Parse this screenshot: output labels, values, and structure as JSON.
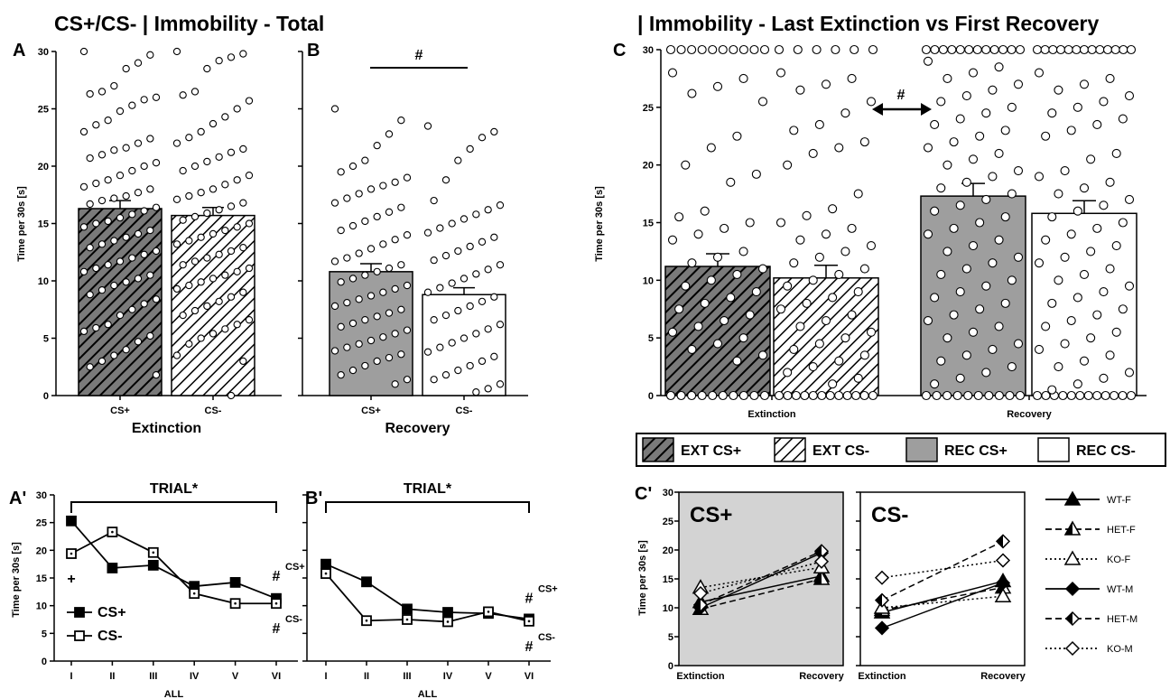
{
  "titles": {
    "left": "CS+/CS- | Immobility - Total",
    "right": "| Immobility - Last Extinction vs First Recovery"
  },
  "colors": {
    "gray_fill": "#9e9e9e",
    "panel_gray": "#d3d3d3",
    "line": "#000000"
  },
  "chart_data": [
    {
      "id": "A",
      "panel_label": "A",
      "type": "bar",
      "categories": [
        "CS+",
        "CS-"
      ],
      "group_label": "Extinction",
      "ylabel": "Time per 30s [s]",
      "ylim": [
        0,
        30
      ],
      "yticks": [
        0,
        5,
        10,
        15,
        20,
        25,
        30
      ],
      "fills": [
        "hatch-dark",
        "hatch-light"
      ],
      "values": [
        16.3,
        15.7
      ],
      "errors": [
        0.7,
        0.7
      ],
      "points": [
        [
          30,
          29.7,
          29,
          28.5,
          27,
          26.5,
          26.3,
          26,
          25.8,
          25.3,
          24.8,
          24,
          23.6,
          23,
          22.4,
          22,
          21.6,
          21.4,
          21,
          20.7,
          20.3,
          20,
          19.6,
          19.2,
          18.8,
          18.5,
          18.2,
          18,
          17.7,
          17.4,
          17.2,
          17,
          16.7,
          16.4,
          16.1,
          15.8,
          15.5,
          15.2,
          15,
          14.7,
          14.4,
          14.1,
          13.8,
          13.5,
          13.2,
          12.9,
          12.6,
          12.3,
          12,
          11.7,
          11.4,
          11.1,
          10.8,
          10.5,
          10.2,
          9.9,
          9.6,
          9.2,
          8.8,
          8.4,
          8,
          7.5,
          7,
          6.2,
          5.9,
          5.6,
          5.2,
          4.7,
          4,
          3.5,
          3,
          2.5,
          1.8
        ],
        [
          30,
          29.8,
          29.5,
          29.2,
          28.5,
          26.5,
          26.2,
          25.7,
          25,
          24.3,
          23.7,
          23,
          22.5,
          22,
          21.5,
          21.2,
          20.8,
          20.4,
          20,
          19.6,
          19.2,
          18.8,
          18.4,
          18,
          17.7,
          17.4,
          17.1,
          16.8,
          16.5,
          16.2,
          15.9,
          15.6,
          15.3,
          15,
          14.7,
          14.4,
          14.1,
          13.8,
          13.5,
          13.2,
          12.9,
          12.6,
          12.3,
          12,
          11.7,
          11.4,
          11.1,
          10.8,
          10.5,
          10.2,
          9.9,
          9.6,
          9.3,
          9,
          8.6,
          8.2,
          7.8,
          7.4,
          7,
          6.6,
          6.2,
          5.8,
          5.4,
          5,
          4.5,
          3.5,
          3,
          0
        ]
      ],
      "hash_bracket": false
    },
    {
      "id": "B",
      "panel_label": "B",
      "type": "bar",
      "categories": [
        "CS+",
        "CS-"
      ],
      "group_label": "Recovery",
      "ylim": [
        0,
        30
      ],
      "fills": [
        "gray",
        "white"
      ],
      "values": [
        10.8,
        8.8
      ],
      "errors": [
        0.7,
        0.6
      ],
      "annotation": "#",
      "points": [
        [
          25,
          24,
          22.8,
          21.8,
          20.5,
          20,
          19.5,
          19,
          18.6,
          18.3,
          18,
          17.6,
          17.2,
          16.8,
          16.4,
          16,
          15.6,
          15.2,
          14.8,
          14.4,
          14,
          13.6,
          13.2,
          12.8,
          12.4,
          12,
          11.7,
          11.4,
          11.1,
          10.8,
          10.5,
          10.2,
          9.9,
          9.6,
          9.3,
          9,
          8.7,
          8.4,
          8.1,
          7.8,
          7.5,
          7.2,
          6.9,
          6.6,
          6.3,
          6,
          5.7,
          5.4,
          5.1,
          4.8,
          4.5,
          4.2,
          3.9,
          3.6,
          3.3,
          3,
          2.6,
          2.2,
          1.8,
          1.4,
          1
        ],
        [
          23.5,
          23,
          22.5,
          21.5,
          20.5,
          18.8,
          17,
          16.6,
          16.2,
          15.8,
          15.4,
          15,
          14.6,
          14.2,
          13.8,
          13.4,
          13,
          12.6,
          12.2,
          11.8,
          11.4,
          11,
          10.6,
          10.2,
          9.8,
          9.4,
          9,
          8.6,
          8.2,
          7.8,
          7.4,
          7,
          6.6,
          6.2,
          5.8,
          5.4,
          5,
          4.6,
          4.2,
          3.8,
          3.4,
          3,
          2.6,
          2.2,
          1.8,
          1.4,
          1,
          0.6,
          0.3
        ]
      ]
    },
    {
      "id": "C",
      "panel_label": "C",
      "type": "bar",
      "categories": [
        "EXT CS+",
        "EXT CS-",
        "REC CS+",
        "REC CS-"
      ],
      "group_labels": [
        "Extinction",
        "Recovery"
      ],
      "ylabel": "Time per 30s [s]",
      "ylim": [
        0,
        30
      ],
      "yticks": [
        0,
        5,
        10,
        15,
        20,
        25,
        30
      ],
      "fills": [
        "hatch-dark",
        "hatch-light",
        "gray",
        "white"
      ],
      "values": [
        11.2,
        10.2,
        17.3,
        15.8
      ],
      "errors": [
        1.1,
        1.1,
        1.1,
        1.1
      ],
      "annotation": "#",
      "points": [
        {
          "at30": 10,
          "at0": 10,
          "mid": [
            28,
            27.5,
            26.8,
            26.2,
            25.5,
            22.5,
            21.5,
            20,
            19.2,
            18.5,
            16,
            15.5,
            15,
            14.5,
            14,
            13.5,
            12.5,
            12,
            11.5,
            11,
            10.5,
            10,
            9.5,
            9,
            8.5,
            8,
            7.5,
            7,
            6.5,
            6,
            5.5,
            5,
            4.5,
            4,
            3.5,
            3
          ]
        },
        {
          "at30": 6,
          "at0": 12,
          "mid": [
            28,
            27.5,
            27,
            26.5,
            25.5,
            24.5,
            23.5,
            23,
            22,
            21.5,
            21,
            20,
            17.5,
            16.2,
            15.6,
            15,
            14.5,
            14,
            13.5,
            13,
            12.5,
            12,
            11.5,
            11,
            10.5,
            10,
            9.5,
            9,
            8.5,
            8,
            7.5,
            7,
            6.5,
            6,
            5.5,
            5,
            4.5,
            4,
            3.5,
            3,
            2.5,
            2,
            1.5,
            1
          ]
        },
        {
          "at30": 12,
          "at0": 10,
          "mid": [
            29,
            28.5,
            28,
            27.5,
            27,
            26.5,
            26,
            25.5,
            25,
            24.5,
            24,
            23.5,
            23,
            22.5,
            22,
            21.5,
            21,
            20.5,
            20,
            19.5,
            19,
            18.5,
            18,
            17.5,
            17,
            16.5,
            16,
            15.5,
            15,
            14.5,
            14,
            13.5,
            13,
            12.5,
            12,
            11.5,
            11,
            10.5,
            10,
            9.5,
            9,
            8.5,
            8,
            7.5,
            7,
            6.5,
            6,
            5.5,
            5,
            4.5,
            4,
            3.5,
            3,
            2.5,
            2,
            1.5,
            1
          ]
        },
        {
          "at30": 13,
          "at0": 12,
          "mid": [
            28,
            27.5,
            27,
            26.5,
            26,
            25.5,
            25,
            24.5,
            24,
            23.5,
            23,
            22.5,
            21,
            20.5,
            19.5,
            19,
            18.5,
            18,
            17.5,
            17,
            16.5,
            16,
            15.5,
            15,
            14.5,
            14,
            13.5,
            13,
            12.5,
            12,
            11.5,
            11,
            10.5,
            10,
            9.5,
            9,
            8.5,
            8,
            7.5,
            7,
            6.5,
            6,
            5.5,
            5,
            4.5,
            4,
            3.5,
            3,
            2.5,
            2,
            1.5,
            1,
            0.5
          ]
        }
      ]
    },
    {
      "id": "A'",
      "panel_label": "A'",
      "type": "line",
      "top_label": "TRIAL*",
      "ylabel": "Time per 30s [s]",
      "ylim": [
        0,
        30
      ],
      "yticks": [
        0,
        5,
        10,
        15,
        20,
        25,
        30
      ],
      "x": [
        "I",
        "II",
        "III",
        "IV",
        "V",
        "VI"
      ],
      "xlabel": "ALL",
      "series": [
        {
          "name": "CS+",
          "marker": "filled-square",
          "values": [
            25.3,
            16.8,
            17.3,
            13.5,
            14.2,
            11.3
          ],
          "errors": [
            0.7,
            0.7,
            0.7,
            0.7,
            0.7,
            0.7
          ]
        },
        {
          "name": "CS-",
          "marker": "open-square",
          "values": [
            19.4,
            23.3,
            19.6,
            12.2,
            10.4,
            10.4
          ],
          "errors": [
            0.7,
            0.7,
            0.7,
            0.7,
            0.7,
            0.7
          ]
        }
      ],
      "annotations": [
        {
          "text": "+",
          "x": "I",
          "y": 15
        },
        {
          "text": "#",
          "x": "VI",
          "y": 15.5,
          "sup": "CS+"
        },
        {
          "text": "#",
          "x": "VI",
          "y": 6,
          "sup": "CS-"
        }
      ]
    },
    {
      "id": "B'",
      "panel_label": "B'",
      "type": "line",
      "top_label": "TRIAL*",
      "ylim": [
        0,
        30
      ],
      "x": [
        "I",
        "II",
        "III",
        "IV",
        "V",
        "VI"
      ],
      "xlabel": "ALL",
      "series": [
        {
          "name": "CS+",
          "marker": "filled-square",
          "values": [
            17.5,
            14.3,
            9.4,
            8.8,
            8.6,
            7.6
          ],
          "errors": [
            0.6,
            0.6,
            0.6,
            0.6,
            0.6,
            0.6
          ]
        },
        {
          "name": "CS-",
          "marker": "open-square",
          "values": [
            15.8,
            7.3,
            7.5,
            7.1,
            8.9,
            7.2
          ],
          "errors": [
            0.6,
            0.6,
            0.6,
            0.6,
            0.6,
            0.6
          ]
        }
      ],
      "annotations": [
        {
          "text": "#",
          "x": "VI",
          "y": 11.5,
          "sup": "CS+"
        },
        {
          "text": "#",
          "x": "VI",
          "y": 2.8,
          "sup": "CS-"
        }
      ]
    },
    {
      "id": "C'",
      "panel_label": "C'",
      "type": "line",
      "ylabel": "Time per 30s [s]",
      "ylim": [
        0,
        30
      ],
      "yticks": [
        0,
        5,
        10,
        15,
        20,
        25,
        30
      ],
      "x": [
        "Extinction",
        "Recovery"
      ],
      "subpanels": [
        {
          "title": "CS+",
          "background": "#d3d3d3",
          "series": [
            {
              "name": "WT-F",
              "values": [
                11.0,
                15.5
              ]
            },
            {
              "name": "HET-F",
              "values": [
                9.8,
                15.0
              ]
            },
            {
              "name": "KO-F",
              "values": [
                13.5,
                17.0
              ]
            },
            {
              "name": "WT-M",
              "values": [
                10.0,
                19.5
              ]
            },
            {
              "name": "HET-M",
              "values": [
                10.5,
                19.8
              ]
            },
            {
              "name": "KO-M",
              "values": [
                12.5,
                18.0
              ]
            }
          ]
        },
        {
          "title": "CS-",
          "background": "#ffffff",
          "series": [
            {
              "name": "WT-F",
              "values": [
                9.2,
                14.6
              ]
            },
            {
              "name": "HET-F",
              "values": [
                9.6,
                13.5
              ]
            },
            {
              "name": "KO-F",
              "values": [
                10.0,
                12.0
              ]
            },
            {
              "name": "WT-M",
              "values": [
                6.5,
                14.3
              ]
            },
            {
              "name": "HET-M",
              "values": [
                11.3,
                21.5
              ]
            },
            {
              "name": "KO-M",
              "values": [
                15.2,
                18.2
              ]
            }
          ]
        }
      ],
      "legend": [
        {
          "name": "WT-F",
          "marker": "triangle",
          "fill": "filled",
          "dash": "solid"
        },
        {
          "name": "HET-F",
          "marker": "triangle",
          "fill": "half",
          "dash": "dashed"
        },
        {
          "name": "KO-F",
          "marker": "triangle",
          "fill": "open",
          "dash": "dotted"
        },
        {
          "name": "WT-M",
          "marker": "diamond",
          "fill": "filled",
          "dash": "solid"
        },
        {
          "name": "HET-M",
          "marker": "diamond",
          "fill": "half",
          "dash": "dashed"
        },
        {
          "name": "KO-M",
          "marker": "diamond",
          "fill": "open",
          "dash": "dotted"
        }
      ]
    }
  ],
  "legend_main": [
    {
      "label": "EXT CS+",
      "fill": "hatch-dark"
    },
    {
      "label": "EXT CS-",
      "fill": "hatch-light"
    },
    {
      "label": "REC CS+",
      "fill": "gray"
    },
    {
      "label": "REC CS-",
      "fill": "white"
    }
  ]
}
